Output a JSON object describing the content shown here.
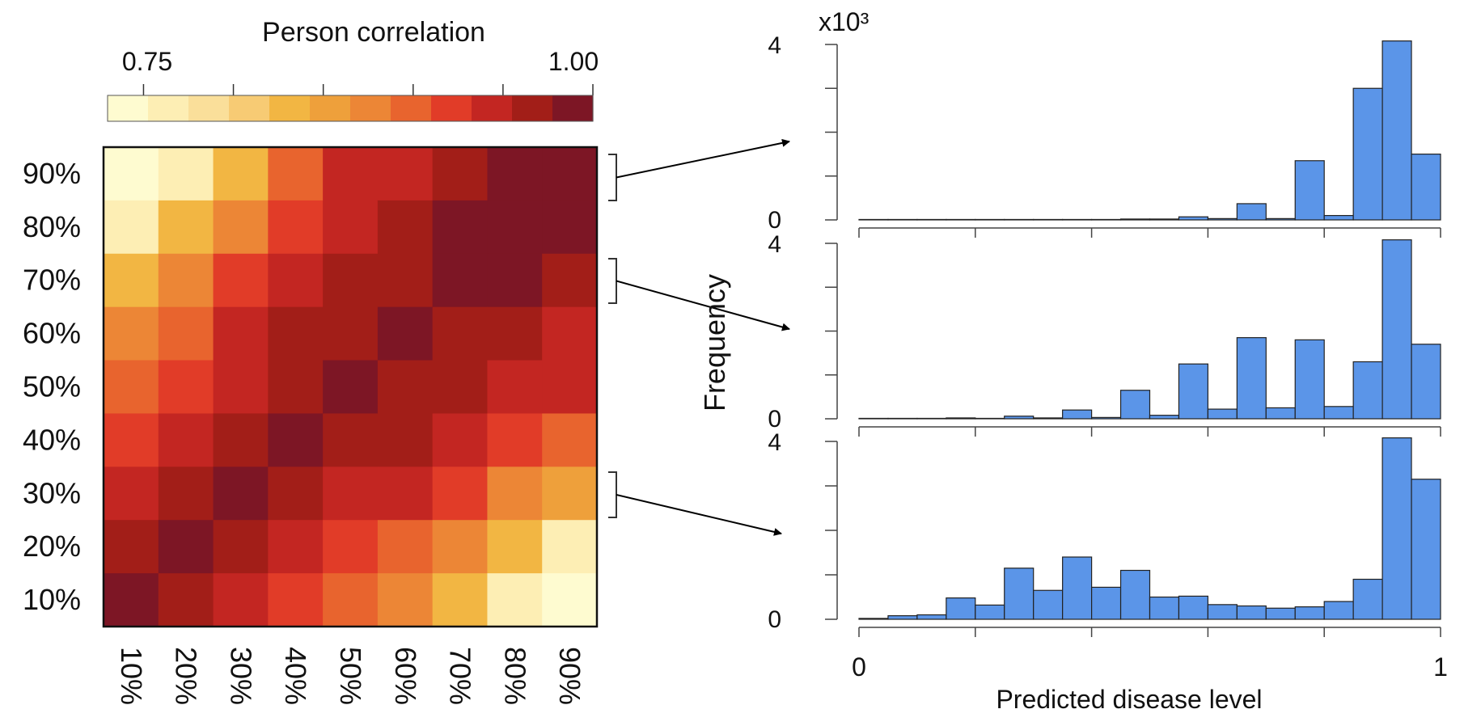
{
  "chart_data": [
    {
      "type": "heatmap",
      "colorbar": {
        "title": "Person correlation",
        "min_label": "0.75",
        "max_label": "1.00",
        "range": [
          0.73,
          1.0
        ],
        "colors": [
          "#fefbd0",
          "#fdeeb4",
          "#fadf9a",
          "#f7cb74",
          "#f2b643",
          "#eea03b",
          "#ec8636",
          "#e8642e",
          "#e13c28",
          "#c32622",
          "#a21e18",
          "#7d1625"
        ]
      },
      "row_labels": [
        "90%",
        "80%",
        "70%",
        "60%",
        "50%",
        "40%",
        "30%",
        "20%",
        "10%"
      ],
      "col_labels": [
        "10%",
        "20%",
        "30%",
        "40%",
        "50%",
        "60%",
        "70%",
        "80%",
        "90%"
      ],
      "values": [
        [
          0,
          1,
          4,
          7,
          9,
          9,
          10,
          11,
          11
        ],
        [
          1,
          4,
          6,
          8,
          9,
          10,
          11,
          11,
          11
        ],
        [
          4,
          6,
          8,
          9,
          10,
          10,
          11,
          11,
          10
        ],
        [
          6,
          7,
          9,
          10,
          10,
          11,
          10,
          10,
          9
        ],
        [
          7,
          8,
          9,
          10,
          11,
          10,
          10,
          9,
          9
        ],
        [
          8,
          9,
          10,
          11,
          10,
          10,
          9,
          8,
          7
        ],
        [
          9,
          10,
          11,
          10,
          9,
          9,
          8,
          6,
          5
        ],
        [
          10,
          11,
          10,
          9,
          8,
          7,
          6,
          4,
          1
        ],
        [
          11,
          10,
          9,
          8,
          7,
          6,
          4,
          1,
          0
        ]
      ]
    },
    {
      "type": "bar",
      "title": "",
      "xlabel": "Predicted disease level",
      "ylabel": "Frequency",
      "y_multiplier": "x10³",
      "xlim": [
        0,
        1
      ],
      "x_tick_labels": [
        "0",
        "1"
      ],
      "ylim": [
        0,
        4
      ],
      "y_tick_labels": [
        "0",
        "4"
      ],
      "bar_color": "#5b95e8",
      "panels": [
        {
          "row_group": "90%",
          "values": [
            0.01,
            0.01,
            0.01,
            0.01,
            0.01,
            0.01,
            0.01,
            0.01,
            0.01,
            0.02,
            0.02,
            0.07,
            0.03,
            0.37,
            0.03,
            1.35,
            0.1,
            3.0,
            4.1,
            1.5
          ]
        },
        {
          "row_group": "70%",
          "values": [
            0.01,
            0.01,
            0.01,
            0.02,
            0.01,
            0.06,
            0.02,
            0.2,
            0.03,
            0.65,
            0.08,
            1.25,
            0.22,
            1.85,
            0.25,
            1.8,
            0.28,
            1.3,
            4.1,
            1.7
          ]
        },
        {
          "row_group": "30%",
          "values": [
            0.02,
            0.08,
            0.1,
            0.48,
            0.32,
            1.15,
            0.65,
            1.4,
            0.72,
            1.1,
            0.5,
            0.52,
            0.33,
            0.3,
            0.25,
            0.28,
            0.4,
            0.9,
            4.15,
            3.15
          ]
        }
      ]
    }
  ]
}
